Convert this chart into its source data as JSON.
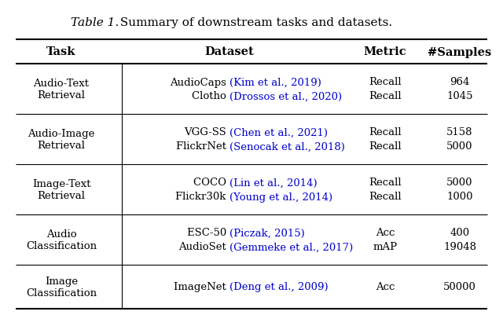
{
  "title_italic": "Table 1.",
  "title_normal": " Summary of downstream tasks and datasets.",
  "headers": [
    "Task",
    "Dataset",
    "Metric",
    "#Samples"
  ],
  "rows": [
    {
      "task": "Audio-Text\nRetrieval",
      "datasets": [
        {
          "name": "AudioCaps ",
          "cite": "(Kim et al., 2019)"
        },
        {
          "name": "Clotho ",
          "cite": "(Drossos et al., 2020)"
        }
      ],
      "metrics": [
        "Recall",
        "Recall"
      ],
      "samples": [
        "964",
        "1045"
      ]
    },
    {
      "task": "Audio-Image\nRetrieval",
      "datasets": [
        {
          "name": "VGG-SS ",
          "cite": "(Chen et al., 2021)"
        },
        {
          "name": "FlickrNet ",
          "cite": "(Senocak et al., 2018)"
        }
      ],
      "metrics": [
        "Recall",
        "Recall"
      ],
      "samples": [
        "5158",
        "5000"
      ]
    },
    {
      "task": "Image-Text\nRetrieval",
      "datasets": [
        {
          "name": "COCO ",
          "cite": "(Lin et al., 2014)"
        },
        {
          "name": "Flickr30k ",
          "cite": "(Young et al., 2014)"
        }
      ],
      "metrics": [
        "Recall",
        "Recall"
      ],
      "samples": [
        "5000",
        "1000"
      ]
    },
    {
      "task": "Audio\nClassification",
      "datasets": [
        {
          "name": "ESC-50 ",
          "cite": "(Piczak, 2015)"
        },
        {
          "name": "AudioSet ",
          "cite": "(Gemmeke et al., 2017)"
        }
      ],
      "metrics": [
        "Acc",
        "mAP"
      ],
      "samples": [
        "400",
        "19048"
      ]
    },
    {
      "task": "Image\nClassification",
      "datasets": [
        {
          "name": "ImageNet ",
          "cite": "(Deng et al., 2009)"
        }
      ],
      "metrics": [
        "Acc"
      ],
      "samples": [
        "50000"
      ]
    }
  ],
  "cite_color": "#0000CD",
  "header_color": "#000000",
  "text_color": "#000000",
  "bg_color": "#ffffff",
  "fontsize": 9.5,
  "header_fontsize": 10.5,
  "title_fontsize": 11
}
